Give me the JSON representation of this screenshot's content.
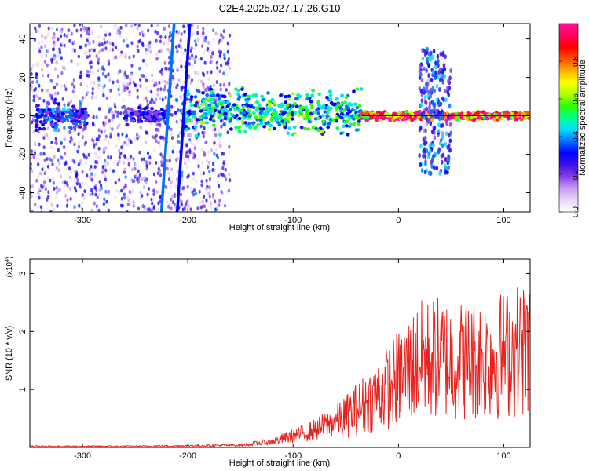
{
  "title": "C2E4.2025.027.17.26.G10",
  "colors": {
    "snr_line": "#e8231f",
    "ground_line": "#202020",
    "colormap": [
      "#ffffff",
      "#e9d8f7",
      "#c79cf0",
      "#8a3fe8",
      "#3d10e6",
      "#0000ff",
      "#0070ff",
      "#00e0ff",
      "#00ff90",
      "#30ff00",
      "#b0ff00",
      "#ffff00",
      "#ffb000",
      "#ff5000",
      "#ff0000",
      "#ff0060",
      "#ff1493"
    ]
  },
  "chart_data": [
    {
      "type": "heatmap",
      "xlabel": "Height of straight line (km)",
      "ylabel": "Frequency (Hz)",
      "xlim": [
        -350,
        125
      ],
      "ylim": [
        -50,
        48
      ],
      "xticks": [
        -300,
        -200,
        -100,
        0,
        100
      ],
      "xtick_labels": [
        "-300",
        "-200",
        "-100",
        "0",
        "100"
      ],
      "yticks": [
        -40,
        -20,
        0,
        20,
        40
      ],
      "ytick_labels": [
        "-40",
        "-20",
        "0",
        "20",
        "40"
      ],
      "colorbar": {
        "label": "Normalized spectral amplitude",
        "range": [
          0,
          1
        ],
        "ticks": [
          0.0,
          0.2,
          0.4,
          0.6,
          0.8
        ],
        "tick_labels": [
          "0.0",
          "0.2",
          "0.4",
          "0.6",
          "0.8"
        ]
      },
      "features": [
        {
          "kind": "noise",
          "x_range": [
            -350,
            -160
          ],
          "f_range": [
            -50,
            48
          ],
          "level": 0.15
        },
        {
          "kind": "band",
          "x_range": [
            -345,
            -295
          ],
          "f_center": 0,
          "f_width": 6,
          "level": 0.3
        },
        {
          "kind": "band",
          "x_range": [
            -260,
            -220
          ],
          "f_center": 0,
          "f_width": 4,
          "level": 0.25
        },
        {
          "kind": "band",
          "x_range": [
            -205,
            -35
          ],
          "f_center": 2,
          "f_width": 10,
          "level": 0.45
        },
        {
          "kind": "band",
          "x_range": [
            -35,
            125
          ],
          "f_center": 0,
          "f_width": 2,
          "level": 0.85
        },
        {
          "kind": "burst",
          "x_range": [
            20,
            50
          ],
          "f_range": [
            -30,
            35
          ],
          "level": 0.3
        },
        {
          "kind": "streak",
          "x": -225,
          "f_range": [
            -50,
            48
          ],
          "level": 0.3
        },
        {
          "kind": "streak",
          "x": -210,
          "f_range": [
            -50,
            48
          ],
          "level": 0.25
        }
      ]
    },
    {
      "type": "line",
      "xlabel": "Height of straight line (km)",
      "ylabel": "SNR (10 * v/v)",
      "ylabel_exponent": "(x10",
      "ylabel_exponent_sup": "4",
      "ylabel_exponent_close": ")",
      "xlim": [
        -350,
        125
      ],
      "ylim": [
        0,
        3.25
      ],
      "xticks": [
        -300,
        -200,
        -100,
        0,
        100
      ],
      "xtick_labels": [
        "-300",
        "-200",
        "-100",
        "0",
        "100"
      ],
      "yticks": [
        1,
        2,
        3
      ],
      "ytick_labels": [
        "1",
        "2",
        "3"
      ],
      "series": [
        {
          "x": [
            -350,
            -250,
            -150,
            -120,
            -100,
            -80,
            -60,
            -40,
            -20,
            0,
            20,
            40,
            60,
            80,
            100,
            125
          ],
          "y": [
            0.02,
            0.02,
            0.04,
            0.1,
            0.2,
            0.3,
            0.45,
            0.65,
            0.9,
            1.2,
            1.5,
            1.55,
            1.5,
            1.55,
            1.6,
            1.75
          ]
        }
      ]
    }
  ]
}
